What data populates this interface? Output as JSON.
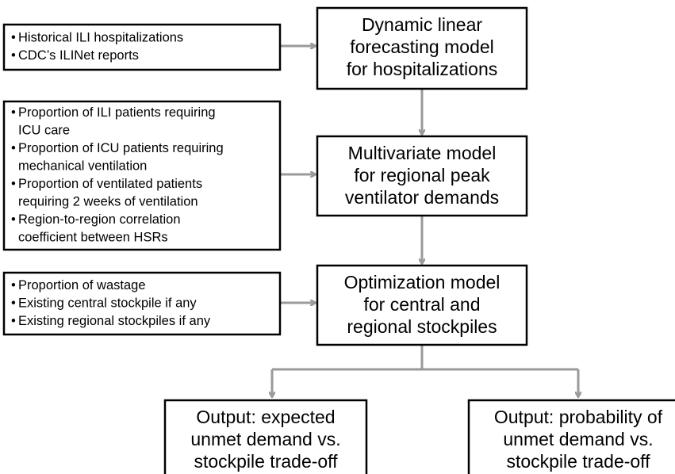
{
  "inputs": [
    {
      "items": [
        [
          "Historical ILI hospitalizations"
        ],
        [
          "CDC’s ILINet reports"
        ]
      ]
    },
    {
      "items": [
        [
          "Proportion of ILI patients requiring",
          "ICU care"
        ],
        [
          "Proportion of ICU patients requiring",
          "mechanical ventilation"
        ],
        [
          "Proportion of ventilated patients",
          "requiring 2 weeks of ventilation"
        ],
        [
          "Region-to-region correlation",
          "coefficient between HSRs"
        ]
      ]
    },
    {
      "items": [
        [
          "Proportion of wastage"
        ],
        [
          "Existing central stockpile if any"
        ],
        [
          "Existing regional stockpiles if any"
        ]
      ]
    }
  ],
  "models": [
    {
      "lines": [
        "Dynamic linear",
        "forecasting model",
        "for hospitalizations"
      ]
    },
    {
      "lines": [
        "Multivariate model",
        "for regional peak",
        "ventilator demands"
      ]
    },
    {
      "lines": [
        "Optimization model",
        "for central and",
        "regional stockpiles"
      ]
    }
  ],
  "outputs": [
    {
      "lines": [
        "Output: expected",
        "unmet demand vs.",
        "stockpile trade-off"
      ]
    },
    {
      "lines": [
        "Output: probability of",
        "unmet demand vs.",
        "stockpile trade-off"
      ]
    }
  ]
}
